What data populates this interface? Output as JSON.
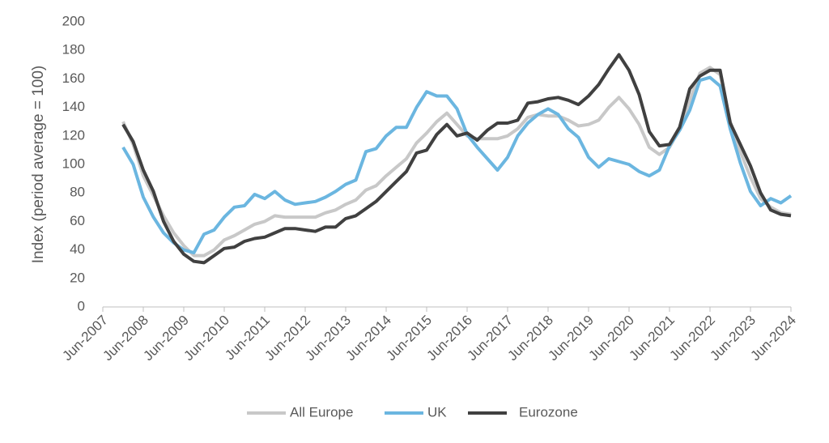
{
  "chart_data": {
    "type": "line",
    "ylabel": "Index (period average = 100)",
    "categories": [
      "Jun-2007",
      null,
      null,
      null,
      "Jun-2008",
      null,
      null,
      null,
      "Jun-2009",
      null,
      null,
      null,
      "Jun-2010",
      null,
      null,
      null,
      "Jun-2011",
      null,
      null,
      null,
      "Jun-2012",
      null,
      null,
      null,
      "Jun-2013",
      null,
      null,
      null,
      "Jun-2014",
      null,
      null,
      null,
      "Jun-2015",
      null,
      null,
      null,
      "Jun-2016",
      null,
      null,
      null,
      "Jun-2017",
      null,
      null,
      null,
      "Jun-2018",
      null,
      null,
      null,
      "Jun-2019",
      null,
      null,
      null,
      "Jun-2020",
      null,
      null,
      null,
      "Jun-2021",
      null,
      null,
      null,
      "Jun-2022",
      null,
      null,
      null,
      "Jun-2023",
      null,
      null,
      null,
      "Jun-2024"
    ],
    "series": [
      {
        "name": "All Europe",
        "color": "#c8c8c8",
        "values": [
          null,
          null,
          130,
          114,
          92,
          78,
          64,
          52,
          43,
          36,
          36,
          40,
          47,
          50,
          54,
          58,
          60,
          64,
          63,
          63,
          63,
          63,
          66,
          68,
          72,
          75,
          82,
          85,
          92,
          98,
          104,
          115,
          122,
          130,
          136,
          128,
          120,
          118,
          118,
          118,
          120,
          125,
          133,
          135,
          134,
          134,
          131,
          127,
          128,
          131,
          140,
          147,
          139,
          128,
          112,
          107,
          112,
          125,
          145,
          164,
          168,
          163,
          130,
          109,
          91,
          76,
          70,
          66,
          65
        ]
      },
      {
        "name": "UK",
        "color": "#6bb6e0",
        "values": [
          null,
          null,
          112,
          100,
          77,
          63,
          52,
          45,
          40,
          38,
          51,
          54,
          63,
          70,
          71,
          79,
          76,
          81,
          75,
          72,
          73,
          74,
          77,
          81,
          86,
          89,
          109,
          111,
          120,
          126,
          126,
          140,
          151,
          148,
          148,
          139,
          121,
          112,
          104,
          96,
          105,
          120,
          129,
          135,
          139,
          135,
          125,
          119,
          105,
          98,
          104,
          102,
          100,
          95,
          92,
          96,
          113,
          124,
          138,
          159,
          161,
          155,
          125,
          101,
          81,
          71,
          76,
          73,
          78
        ]
      },
      {
        "name": "Eurozone",
        "color": "#404040",
        "values": [
          null,
          null,
          128,
          116,
          96,
          81,
          60,
          46,
          37,
          32,
          31,
          36,
          41,
          42,
          46,
          48,
          49,
          52,
          55,
          55,
          54,
          53,
          56,
          56,
          62,
          64,
          69,
          74,
          81,
          88,
          95,
          108,
          110,
          121,
          128,
          120,
          122,
          117,
          124,
          129,
          129,
          131,
          143,
          144,
          146,
          147,
          145,
          142,
          148,
          156,
          167,
          177,
          166,
          149,
          123,
          113,
          114,
          126,
          153,
          162,
          166,
          166,
          129,
          114,
          99,
          80,
          68,
          65,
          64
        ]
      }
    ],
    "ylim": [
      0,
      200
    ],
    "yticks": [
      0,
      20,
      40,
      60,
      80,
      100,
      120,
      140,
      160,
      180,
      200
    ],
    "grid": false
  }
}
